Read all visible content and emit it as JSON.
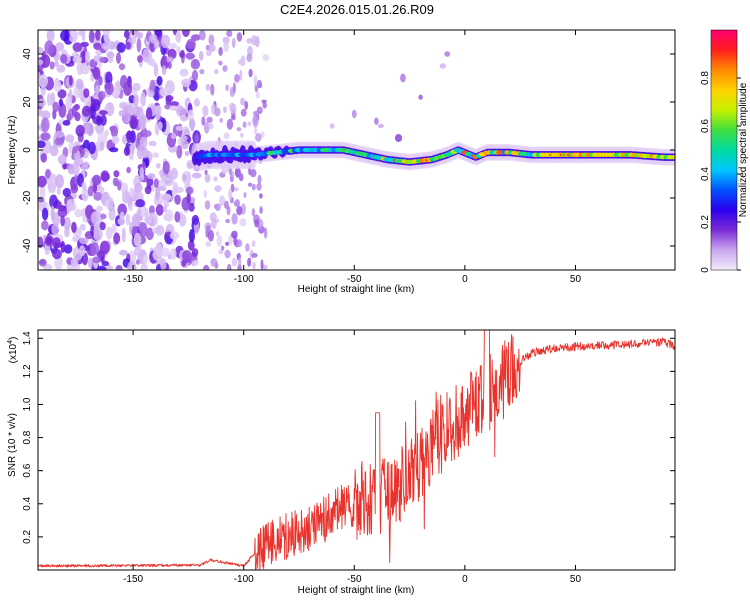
{
  "title": "C2E4.2026.015.01.26.R09",
  "chart_data": [
    {
      "type": "heatmap",
      "name": "spectrogram",
      "xlabel": "Height of straight line (km)",
      "ylabel": "Frequency (Hz)",
      "xlim": [
        -193,
        95
      ],
      "ylim": [
        -50,
        50
      ],
      "xticks": [
        -150,
        -100,
        -50,
        0,
        50
      ],
      "yticks": [
        -40,
        -20,
        0,
        20,
        40
      ],
      "colorbar": {
        "label": "Normalized spectral amplitude",
        "range": [
          0,
          1
        ],
        "ticks": [
          0,
          0.2,
          0.4,
          0.6,
          0.8
        ],
        "colors": [
          "#f3ecfb",
          "#c9a6ef",
          "#7c2bd6",
          "#2b00f0",
          "#0050ff",
          "#00c8ff",
          "#00d9a0",
          "#3fe03f",
          "#c8f000",
          "#ffd200",
          "#ff8a00",
          "#ff1e1e",
          "#ff0070"
        ]
      },
      "ridge": {
        "description_x": [
          -121,
          -115,
          -105,
          -95,
          -85,
          -75,
          -65,
          -55,
          -45,
          -35,
          -25,
          -15,
          -8,
          -3,
          5,
          10,
          20,
          30,
          45,
          60,
          75,
          90,
          95
        ],
        "frequency_hz": [
          -3,
          -2,
          -2,
          -2,
          -1,
          0,
          0,
          0,
          -2,
          -4,
          -5,
          -4,
          -2,
          0,
          -3,
          -1,
          -1,
          -2,
          -2,
          -2,
          -2,
          -3,
          -3
        ]
      }
    },
    {
      "type": "line",
      "name": "snr",
      "xlabel": "Height of straight line (km)",
      "ylabel": "SNR (10 * v/v)",
      "y_scale_label": "(x10",
      "y_scale_exp": "4",
      "xlim": [
        -193,
        95
      ],
      "ylim": [
        0,
        14500
      ],
      "xticks": [
        -150,
        -100,
        -50,
        0,
        50
      ],
      "yticks": [
        2000,
        4000,
        6000,
        8000,
        10000,
        12000,
        14000
      ],
      "ytick_labels": [
        "0.2",
        "0.4",
        "0.6",
        "0.8",
        "1.0",
        "1.2",
        "1.4"
      ],
      "color": "#e8322c",
      "envelope_x": [
        -193,
        -120,
        -115,
        -100,
        -95,
        -85,
        -75,
        -65,
        -55,
        -45,
        -40,
        -35,
        -30,
        -25,
        -20,
        -15,
        -10,
        -5,
        0,
        5,
        10,
        15,
        20,
        25,
        30,
        40,
        50,
        60,
        70,
        80,
        90,
        95
      ],
      "envelope_snr": [
        250,
        280,
        600,
        250,
        1000,
        1800,
        2300,
        2900,
        3800,
        4200,
        4300,
        4600,
        5100,
        5800,
        6600,
        7400,
        8200,
        8900,
        9400,
        10000,
        10600,
        11200,
        11900,
        12600,
        13100,
        13400,
        13500,
        13550,
        13600,
        13700,
        13800,
        13500
      ]
    }
  ]
}
